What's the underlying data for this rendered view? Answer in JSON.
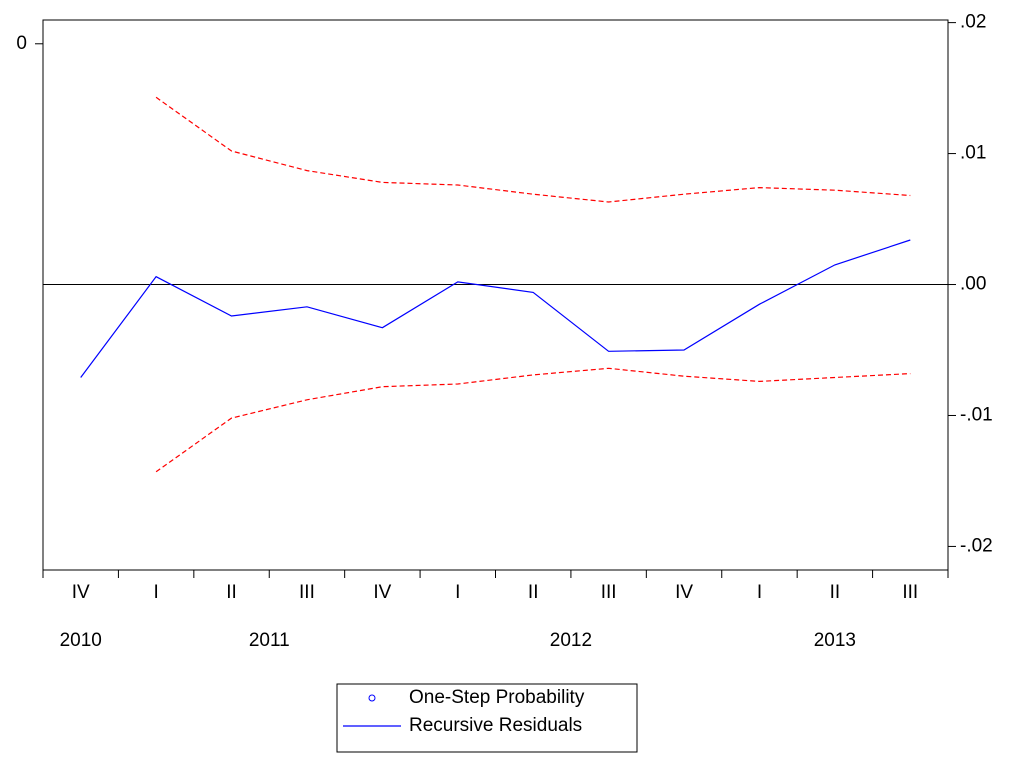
{
  "chart_data": {
    "type": "line",
    "categories": [
      "IV",
      "I",
      "II",
      "III",
      "IV",
      "I",
      "II",
      "III",
      "IV",
      "I",
      "II",
      "III"
    ],
    "x_groups": [
      {
        "label": "2010",
        "count": 1
      },
      {
        "label": "2011",
        "count": 4
      },
      {
        "label": "2012",
        "count": 4
      },
      {
        "label": "2013",
        "count": 3
      }
    ],
    "ylim": [
      -0.5,
      0.0226
    ],
    "yticks": [
      0
    ],
    "y2lim": [
      -0.0218,
      0.0202
    ],
    "y2ticks": [
      {
        "value": 0.02,
        "label": ".02"
      },
      {
        "value": 0.01,
        "label": ".01"
      },
      {
        "value": 0,
        "label": ".00"
      },
      {
        "value": -0.01,
        "label": "-.01"
      },
      {
        "value": -0.02,
        "label": "-.02"
      }
    ],
    "zero_line": true,
    "series": [
      {
        "name": "One-Step Probability",
        "color": "#0000ff",
        "marker": "circle",
        "axis": "y",
        "values": [
          null,
          null,
          null,
          null,
          null,
          null,
          null,
          null,
          null,
          null,
          null,
          null
        ]
      },
      {
        "name": "Recursive Residuals",
        "color": "#0000ff",
        "axis": "y2",
        "values": [
          -0.0071,
          0.0006,
          -0.0024,
          -0.0017,
          -0.0033,
          0.0002,
          -0.0006,
          -0.0051,
          -0.005,
          -0.0015,
          0.0015,
          0.0034
        ]
      },
      {
        "color": "#ff0000",
        "dash": true,
        "axis": "y2",
        "values": [
          null,
          0.0143,
          0.0102,
          0.0087,
          0.0078,
          0.0076,
          0.0069,
          0.0063,
          0.0069,
          0.0074,
          0.0072,
          0.0068
        ]
      },
      {
        "color": "#ff0000",
        "dash": true,
        "axis": "y2",
        "values": [
          null,
          -0.0143,
          -0.0102,
          -0.0088,
          -0.0078,
          -0.0076,
          -0.0069,
          -0.0064,
          -0.007,
          -0.0074,
          -0.0071,
          -0.0068
        ]
      }
    ],
    "legend": "bottom"
  }
}
